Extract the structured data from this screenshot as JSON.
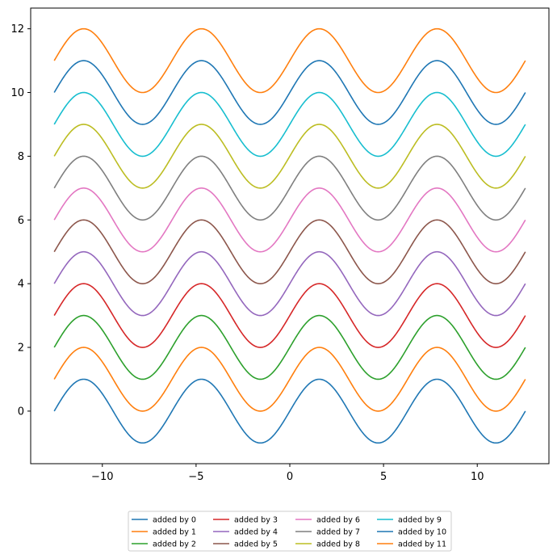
{
  "chart_data": {
    "type": "line",
    "function": "sin(x) + k",
    "x_range": [
      -12.566,
      12.566
    ],
    "xlim": [
      -13.823,
      13.823
    ],
    "ylim": [
      -1.65,
      12.65
    ],
    "x_ticks": [
      -10,
      -5,
      0,
      5,
      10
    ],
    "x_tick_labels": [
      "−10",
      "−5",
      "0",
      "5",
      "10"
    ],
    "y_ticks": [
      0,
      2,
      4,
      6,
      8,
      10,
      12
    ],
    "y_tick_labels": [
      "0",
      "2",
      "4",
      "6",
      "8",
      "10",
      "12"
    ],
    "grid": false,
    "legend_position": "below the plot, centered, 4 columns",
    "series": [
      {
        "name": "added by 0",
        "offset": 0,
        "color": "#1f77b4"
      },
      {
        "name": "added by 1",
        "offset": 1,
        "color": "#ff7f0e"
      },
      {
        "name": "added by 2",
        "offset": 2,
        "color": "#2ca02c"
      },
      {
        "name": "added by 3",
        "offset": 3,
        "color": "#d62728"
      },
      {
        "name": "added by 4",
        "offset": 4,
        "color": "#9467bd"
      },
      {
        "name": "added by 5",
        "offset": 5,
        "color": "#8c564b"
      },
      {
        "name": "added by 6",
        "offset": 6,
        "color": "#e377c2"
      },
      {
        "name": "added by 7",
        "offset": 7,
        "color": "#7f7f7f"
      },
      {
        "name": "added by 8",
        "offset": 8,
        "color": "#bcbd22"
      },
      {
        "name": "added by 9",
        "offset": 9,
        "color": "#17becf"
      },
      {
        "name": "added by 10",
        "offset": 10,
        "color": "#1f77b4"
      },
      {
        "name": "added by 11",
        "offset": 11,
        "color": "#ff7f0e"
      }
    ]
  }
}
